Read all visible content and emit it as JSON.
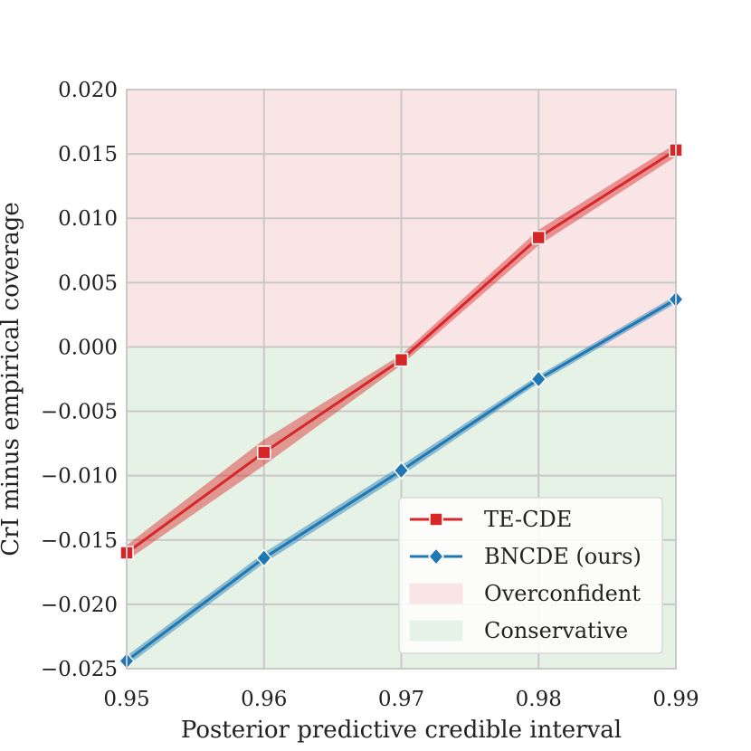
{
  "chart_data": {
    "type": "line",
    "title": "",
    "xlabel": "Posterior predictive credible interval",
    "ylabel": "CrI minus empirical coverage",
    "x": [
      0.95,
      0.96,
      0.97,
      0.98,
      0.99
    ],
    "x_ticks": [
      "0.95",
      "0.96",
      "0.97",
      "0.98",
      "0.99"
    ],
    "y_ticks": [
      "0.020",
      "0.015",
      "0.010",
      "0.005",
      "0.000",
      "−0.005",
      "−0.010",
      "−0.015",
      "−0.020",
      "−0.025"
    ],
    "xlim": [
      0.95,
      0.99
    ],
    "ylim": [
      -0.025,
      0.02
    ],
    "grid": true,
    "legend_position": "bottom-right",
    "series": [
      {
        "name": "TE-CDE",
        "color": "#d62728",
        "marker": "square",
        "values": [
          -0.016,
          -0.0082,
          -0.001,
          0.0085,
          0.0153
        ],
        "lower": [
          -0.0166,
          -0.0092,
          -0.0014,
          0.0079,
          0.0148
        ],
        "upper": [
          -0.0154,
          -0.0072,
          -0.0006,
          0.0091,
          0.0158
        ]
      },
      {
        "name": "BNCDE (ours)",
        "color": "#1f77b4",
        "marker": "diamond",
        "values": [
          -0.0244,
          -0.0164,
          -0.0096,
          -0.0025,
          0.0037
        ],
        "lower": [
          -0.0248,
          -0.0168,
          -0.01,
          -0.0028,
          0.0034
        ],
        "upper": [
          -0.024,
          -0.016,
          -0.0092,
          -0.0022,
          0.004
        ]
      }
    ],
    "regions": [
      {
        "name": "Overconfident",
        "color": "#fae5e6",
        "from": 0.0,
        "to": 0.02
      },
      {
        "name": "Conservative",
        "color": "#e6f2e5",
        "from": -0.025,
        "to": 0.0
      }
    ]
  }
}
